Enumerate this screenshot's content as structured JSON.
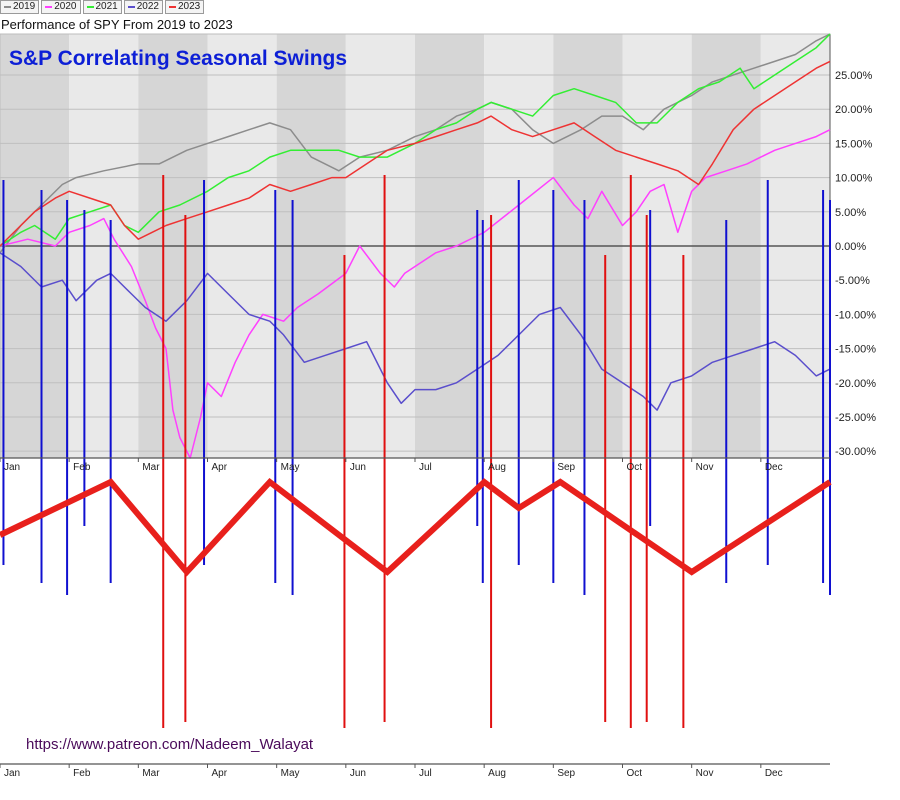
{
  "legend": [
    {
      "label": "2019",
      "color": "#8c8c8c"
    },
    {
      "label": "2020",
      "color": "#ff40ff"
    },
    {
      "label": "2021",
      "color": "#33ee33"
    },
    {
      "label": "2022",
      "color": "#5a4ecc"
    },
    {
      "label": "2023",
      "color": "#ee3333"
    }
  ],
  "subtitle": "Performance of SPY From 2019 to 2023",
  "title": "S&P Correlating Seasonal Swings",
  "source_url": "https://www.patreon.com/Nadeem_Walayat",
  "chart_data": {
    "type": "line",
    "title": "Performance of SPY From 2019 to 2023",
    "xlabel": "",
    "ylabel": "",
    "x_unit": "month (0 = Jan 1, 12 = Dec 31)",
    "xlim": [
      0,
      12
    ],
    "ylim": [
      -31,
      31
    ],
    "y_tick_values": [
      25,
      20,
      15,
      10,
      5,
      0,
      -5,
      -10,
      -15,
      -20,
      -25,
      -30
    ],
    "y_tick_labels": [
      "25.00%",
      "20.00%",
      "15.00%",
      "10.00%",
      "5.00%",
      "0.00%",
      "-5.00%",
      "-10.00%",
      "-15.00%",
      "-20.00%",
      "-25.00%",
      "-30.00%"
    ],
    "month_labels": [
      "Jan",
      "Feb",
      "Mar",
      "Apr",
      "May",
      "Jun",
      "Jul",
      "Aug",
      "Sep",
      "Oct",
      "Nov",
      "Dec"
    ],
    "series": [
      {
        "name": "2019",
        "color": "#8c8c8c",
        "x": [
          0,
          0.3,
          0.6,
          0.9,
          1.1,
          1.5,
          2.0,
          2.3,
          2.7,
          3.0,
          3.3,
          3.6,
          3.9,
          4.2,
          4.5,
          4.9,
          5.2,
          5.6,
          6.0,
          6.3,
          6.6,
          6.9,
          7.1,
          7.4,
          7.7,
          8.0,
          8.4,
          8.7,
          9.0,
          9.3,
          9.6,
          10.0,
          10.3,
          10.6,
          10.9,
          11.2,
          11.5,
          11.8,
          12.0
        ],
        "y": [
          -1,
          3,
          6,
          9,
          10,
          11,
          12,
          12,
          14,
          15,
          16,
          17,
          18,
          17,
          13,
          11,
          13,
          14,
          16,
          17,
          19,
          20,
          21,
          20,
          17,
          15,
          17,
          19,
          19,
          17,
          20,
          22,
          24,
          25,
          26,
          27,
          28,
          30,
          31
        ]
      },
      {
        "name": "2020",
        "color": "#ff40ff",
        "x": [
          0,
          0.4,
          0.8,
          1.0,
          1.3,
          1.5,
          1.65,
          1.9,
          2.1,
          2.25,
          2.4,
          2.5,
          2.6,
          2.75,
          2.9,
          3.0,
          3.2,
          3.4,
          3.6,
          3.8,
          4.1,
          4.3,
          4.6,
          5.0,
          5.2,
          5.5,
          5.7,
          5.85,
          6.0,
          6.3,
          6.6,
          7.0,
          7.5,
          8.0,
          8.3,
          8.5,
          8.7,
          9.0,
          9.2,
          9.4,
          9.6,
          9.8,
          10.0,
          10.2,
          10.5,
          10.8,
          11.0,
          11.2,
          11.5,
          11.8,
          12.0
        ],
        "y": [
          0,
          1,
          0,
          2,
          3,
          4,
          1,
          -3,
          -8,
          -12,
          -15,
          -24,
          -28,
          -31,
          -25,
          -20,
          -22,
          -17,
          -13,
          -10,
          -11,
          -9,
          -7,
          -4,
          0,
          -4,
          -6,
          -4,
          -3,
          -1,
          0,
          2,
          6,
          10,
          6,
          4,
          8,
          3,
          5,
          8,
          9,
          2,
          8,
          10,
          11,
          12,
          13,
          14,
          15,
          16,
          17
        ]
      },
      {
        "name": "2021",
        "color": "#33ee33",
        "x": [
          0,
          0.3,
          0.5,
          0.8,
          1.0,
          1.3,
          1.6,
          1.8,
          2.0,
          2.3,
          2.6,
          3.0,
          3.3,
          3.6,
          3.9,
          4.2,
          4.5,
          4.9,
          5.2,
          5.6,
          6.0,
          6.3,
          6.6,
          6.9,
          7.1,
          7.4,
          7.7,
          8.0,
          8.3,
          8.6,
          8.9,
          9.2,
          9.5,
          9.8,
          10.1,
          10.4,
          10.7,
          10.9,
          11.2,
          11.5,
          11.8,
          12.0
        ],
        "y": [
          0,
          2,
          3,
          1,
          4,
          5,
          6,
          3,
          2,
          5,
          6,
          8,
          10,
          11,
          13,
          14,
          14,
          14,
          13,
          13,
          15,
          17,
          18,
          20,
          21,
          20,
          19,
          22,
          23,
          22,
          21,
          18,
          18,
          21,
          23,
          24,
          26,
          23,
          25,
          27,
          29,
          31
        ]
      },
      {
        "name": "2022",
        "color": "#5a4ecc",
        "x": [
          0,
          0.3,
          0.6,
          0.9,
          1.1,
          1.4,
          1.6,
          1.9,
          2.1,
          2.4,
          2.7,
          3.0,
          3.3,
          3.6,
          3.9,
          4.1,
          4.4,
          4.7,
          5.0,
          5.3,
          5.6,
          5.8,
          6.0,
          6.3,
          6.6,
          6.9,
          7.2,
          7.5,
          7.8,
          8.1,
          8.4,
          8.7,
          9.0,
          9.3,
          9.5,
          9.7,
          10.0,
          10.3,
          10.6,
          10.9,
          11.2,
          11.5,
          11.8,
          12.0
        ],
        "y": [
          -1,
          -3,
          -6,
          -5,
          -8,
          -5,
          -4,
          -7,
          -9,
          -11,
          -8,
          -4,
          -7,
          -10,
          -11,
          -13,
          -17,
          -16,
          -15,
          -14,
          -20,
          -23,
          -21,
          -21,
          -20,
          -18,
          -16,
          -13,
          -10,
          -9,
          -13,
          -18,
          -20,
          -22,
          -24,
          -20,
          -19,
          -17,
          -16,
          -15,
          -14,
          -16,
          -19,
          -18
        ]
      },
      {
        "name": "2023",
        "color": "#ee3333",
        "x": [
          0,
          0.3,
          0.5,
          0.8,
          1.0,
          1.3,
          1.6,
          1.8,
          2.0,
          2.2,
          2.4,
          2.7,
          3.0,
          3.3,
          3.6,
          3.9,
          4.2,
          4.5,
          4.8,
          5.0,
          5.3,
          5.6,
          6.0,
          6.3,
          6.6,
          6.9,
          7.1,
          7.4,
          7.7,
          8.0,
          8.3,
          8.6,
          8.9,
          9.2,
          9.5,
          9.8,
          10.1,
          10.3,
          10.6,
          10.9,
          11.2,
          11.5,
          11.8,
          12.0
        ],
        "y": [
          0,
          3,
          5,
          7,
          8,
          7,
          6,
          3,
          1,
          2,
          3,
          4,
          5,
          6,
          7,
          9,
          8,
          9,
          10,
          10,
          12,
          14,
          15,
          16,
          17,
          18,
          19,
          17,
          16,
          17,
          18,
          16,
          14,
          13,
          12,
          11,
          9,
          12,
          17,
          20,
          22,
          24,
          26,
          27
        ]
      }
    ],
    "annotations": {
      "seasonal_swing_path": {
        "color": "#e8201c",
        "points": [
          {
            "month": 0.0,
            "level": "mid"
          },
          {
            "month": 1.6,
            "level": "high"
          },
          {
            "month": 2.7,
            "level": "low"
          },
          {
            "month": 3.9,
            "level": "high"
          },
          {
            "month": 5.6,
            "level": "low"
          },
          {
            "month": 7.0,
            "level": "high"
          },
          {
            "month": 7.5,
            "level": "mid-high"
          },
          {
            "month": 8.1,
            "level": "high"
          },
          {
            "month": 10.0,
            "level": "low"
          },
          {
            "month": 12.0,
            "level": "high"
          }
        ]
      },
      "blue_marker_months": [
        0.05,
        0.6,
        0.97,
        1.22,
        1.6,
        2.95,
        3.98,
        4.23,
        6.9,
        6.98,
        7.5,
        8.0,
        8.45,
        9.4,
        10.5,
        11.1,
        11.9,
        12.0
      ],
      "red_marker_months": [
        2.36,
        2.68,
        4.98,
        5.56,
        7.1,
        8.75,
        9.12,
        9.35,
        9.88
      ]
    }
  }
}
